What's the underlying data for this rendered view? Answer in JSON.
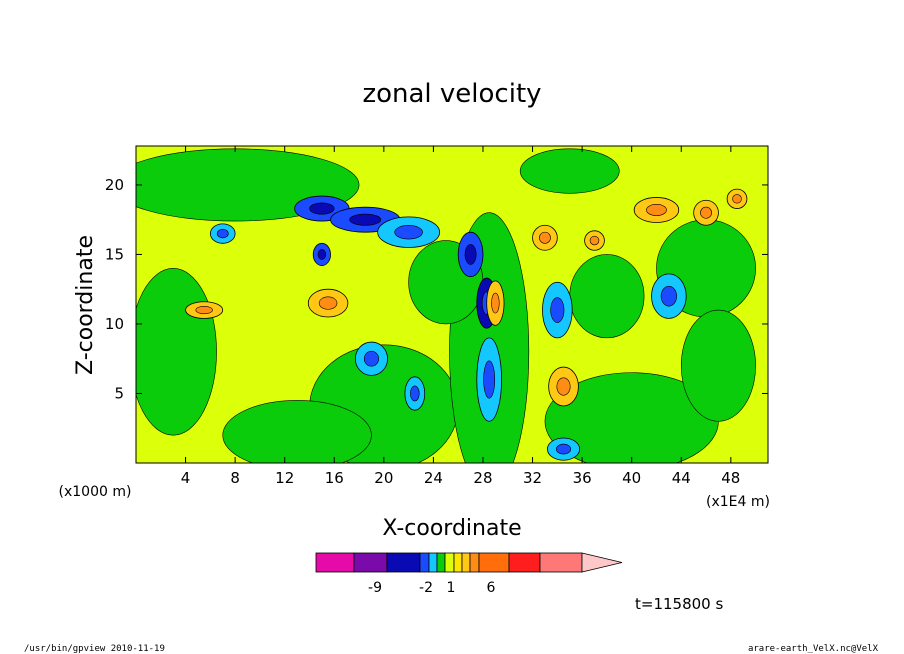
{
  "chart_data": {
    "type": "heatmap",
    "title": "zonal velocity",
    "xlabel": "X-coordinate",
    "ylabel": "Z-coordinate",
    "x_scale_label": "(x1000 m)",
    "x_scale_label_right": "(x1E4 m)",
    "x_ticks": [
      4,
      8,
      12,
      16,
      20,
      24,
      28,
      32,
      36,
      40,
      44,
      48
    ],
    "x_tick_labels": [
      "4",
      "8",
      "12",
      "16",
      "20",
      "24",
      "28",
      "32",
      "36",
      "40",
      "44",
      "48"
    ],
    "xlim": [
      0,
      51
    ],
    "y_ticks": [
      5,
      10,
      15,
      20
    ],
    "y_tick_labels": [
      "5",
      "10",
      "15",
      "20"
    ],
    "ylim": [
      0,
      22.8
    ],
    "colorbar": {
      "colors": [
        "#e60aa8",
        "#7a0aaa",
        "#0a0ab4",
        "#1a4bff",
        "#14c8ff",
        "#0acc0a",
        "#dcff0a",
        "#ffe600",
        "#ffc814",
        "#ff8c14",
        "#ff6e0a",
        "#ff1e1e",
        "#ff7878",
        "#ffc8c8"
      ],
      "tick_labels": [
        "-9",
        "-2",
        "1",
        "6"
      ]
    },
    "time_label": "t=115800 s",
    "blobs": [
      {
        "x": 15,
        "y": 18.3,
        "rx": 2.2,
        "ry": 0.9,
        "level": "blue"
      },
      {
        "x": 18.5,
        "y": 17.5,
        "rx": 2.8,
        "ry": 0.9,
        "level": "blue"
      },
      {
        "x": 22,
        "y": 16.6,
        "rx": 2.5,
        "ry": 1.1,
        "level": "cyan"
      },
      {
        "x": 27,
        "y": 15,
        "rx": 1.0,
        "ry": 1.6,
        "level": "blue"
      },
      {
        "x": 28.3,
        "y": 11.5,
        "rx": 0.8,
        "ry": 1.8,
        "level": "darkblue"
      },
      {
        "x": 29,
        "y": 11.5,
        "rx": 0.7,
        "ry": 1.6,
        "level": "orange"
      },
      {
        "x": 28.5,
        "y": 6,
        "rx": 1.0,
        "ry": 3,
        "level": "cyan"
      },
      {
        "x": 34.5,
        "y": 1.0,
        "rx": 1.3,
        "ry": 0.8,
        "level": "cyan"
      },
      {
        "x": 19,
        "y": 7.5,
        "rx": 1.3,
        "ry": 1.2,
        "level": "cyan"
      },
      {
        "x": 22.5,
        "y": 5.0,
        "rx": 0.8,
        "ry": 1.2,
        "level": "cyan"
      },
      {
        "x": 34,
        "y": 11,
        "rx": 1.2,
        "ry": 2.0,
        "level": "cyan"
      },
      {
        "x": 43,
        "y": 12,
        "rx": 1.4,
        "ry": 1.6,
        "level": "cyan"
      },
      {
        "x": 7,
        "y": 16.5,
        "rx": 1.0,
        "ry": 0.7,
        "level": "cyan"
      },
      {
        "x": 15,
        "y": 15,
        "rx": 0.7,
        "ry": 0.8,
        "level": "blue"
      },
      {
        "x": 42,
        "y": 18.2,
        "rx": 1.8,
        "ry": 0.9,
        "level": "orange"
      },
      {
        "x": 46,
        "y": 18.0,
        "rx": 1.0,
        "ry": 0.9,
        "level": "orange"
      },
      {
        "x": 48.5,
        "y": 19,
        "rx": 0.8,
        "ry": 0.7,
        "level": "orange"
      },
      {
        "x": 33,
        "y": 16.2,
        "rx": 1.0,
        "ry": 0.9,
        "level": "orange"
      },
      {
        "x": 37,
        "y": 16.0,
        "rx": 0.8,
        "ry": 0.7,
        "level": "orange"
      },
      {
        "x": 34.5,
        "y": 5.5,
        "rx": 1.2,
        "ry": 1.4,
        "level": "orange"
      },
      {
        "x": 15.5,
        "y": 11.5,
        "rx": 1.6,
        "ry": 1.0,
        "level": "orange"
      },
      {
        "x": 5.5,
        "y": 11,
        "rx": 1.5,
        "ry": 0.6,
        "level": "orange"
      }
    ]
  },
  "footer": {
    "left": "/usr/bin/gpview   2010-11-19",
    "right": "arare-earth_VelX.nc@VelX"
  }
}
